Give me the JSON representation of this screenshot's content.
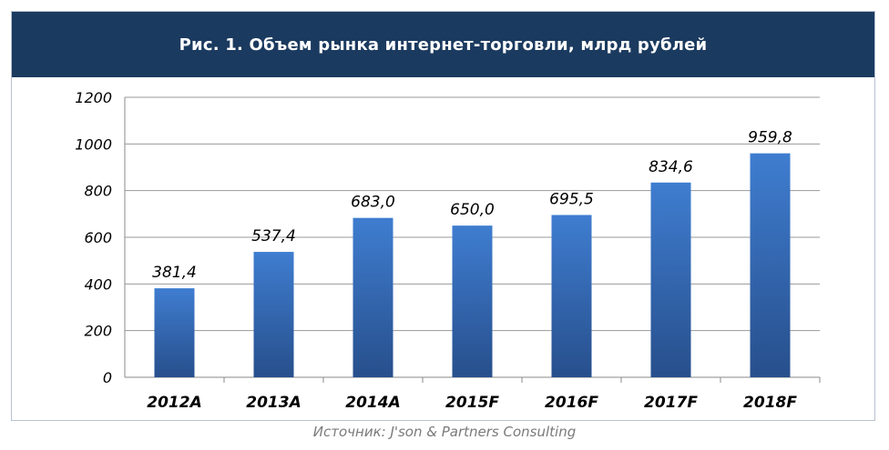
{
  "title": "Рис. 1. Объем рынка интернет-торговли, млрд рублей",
  "source": "Источник: J'son & Partners Consulting",
  "colors": {
    "header_bg": "#1b3a5f",
    "bar_top": "#3f7dd0",
    "bar_bottom": "#274f8c",
    "grid": "#9a9a9a"
  },
  "chart_data": {
    "type": "bar",
    "title": "Рис. 1. Объем рынка интернет-торговли, млрд рублей",
    "categories": [
      "2012A",
      "2013A",
      "2014A",
      "2015F",
      "2016F",
      "2017F",
      "2018F"
    ],
    "values": [
      381.4,
      537.4,
      683.0,
      650.0,
      695.5,
      834.6,
      959.8
    ],
    "data_labels": [
      "381,4",
      "537,4",
      "683,0",
      "650,0",
      "695,5",
      "834,6",
      "959,8"
    ],
    "yticks": [
      0,
      200,
      400,
      600,
      800,
      1000,
      1200
    ],
    "ylim": [
      0,
      1200
    ],
    "xlabel": "",
    "ylabel": "",
    "grid": true
  }
}
